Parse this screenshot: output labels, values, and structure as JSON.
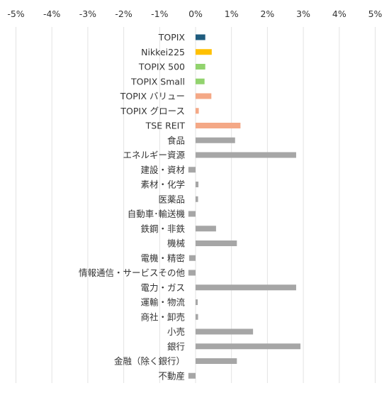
{
  "chart_data": {
    "type": "bar",
    "orientation": "horizontal",
    "title": "",
    "xlabel": "",
    "ylabel": "",
    "xlim": [
      -5,
      5
    ],
    "x_ticks": [
      "-5%",
      "-4%",
      "-3%",
      "-2%",
      "-1%",
      "0%",
      "1%",
      "2%",
      "3%",
      "4%",
      "5%"
    ],
    "x_tick_values": [
      -5,
      -4,
      -3,
      -2,
      -1,
      0,
      1,
      2,
      3,
      4,
      5
    ],
    "grid": "vertical",
    "legend": "none",
    "categories": [
      "TOPIX",
      "Nikkei225",
      "TOPIX 500",
      "TOPIX Small",
      "TOPIX バリュー",
      "TOPIX グロース",
      "TSE REIT",
      "食品",
      "エネルギー資源",
      "建設・資材",
      "素材・化学",
      "医薬品",
      "自動車･輸送機",
      "鉄鋼・非鉄",
      "機械",
      "電機・精密",
      "情報通信・サービスその他",
      "電力・ガス",
      "運輸・物流",
      "商社・卸売",
      "小売",
      "銀行",
      "金融（除く銀行）",
      "不動産"
    ],
    "values": [
      0.27,
      0.45,
      0.27,
      0.25,
      0.44,
      0.09,
      1.25,
      1.1,
      2.8,
      -0.2,
      0.08,
      0.07,
      -0.2,
      0.57,
      1.15,
      -0.18,
      -0.2,
      2.8,
      0.06,
      0.07,
      1.6,
      2.92,
      1.15,
      -0.2
    ],
    "colors": [
      "#1f5c7e",
      "#ffc000",
      "#92d36e",
      "#92d36e",
      "#f4a886",
      "#f4a886",
      "#f4a886",
      "#a6a6a6",
      "#a6a6a6",
      "#a6a6a6",
      "#a6a6a6",
      "#a6a6a6",
      "#a6a6a6",
      "#a6a6a6",
      "#a6a6a6",
      "#a6a6a6",
      "#a6a6a6",
      "#a6a6a6",
      "#a6a6a6",
      "#a6a6a6",
      "#a6a6a6",
      "#a6a6a6",
      "#a6a6a6",
      "#a6a6a6"
    ],
    "grid_color": "#e3e3e3"
  }
}
